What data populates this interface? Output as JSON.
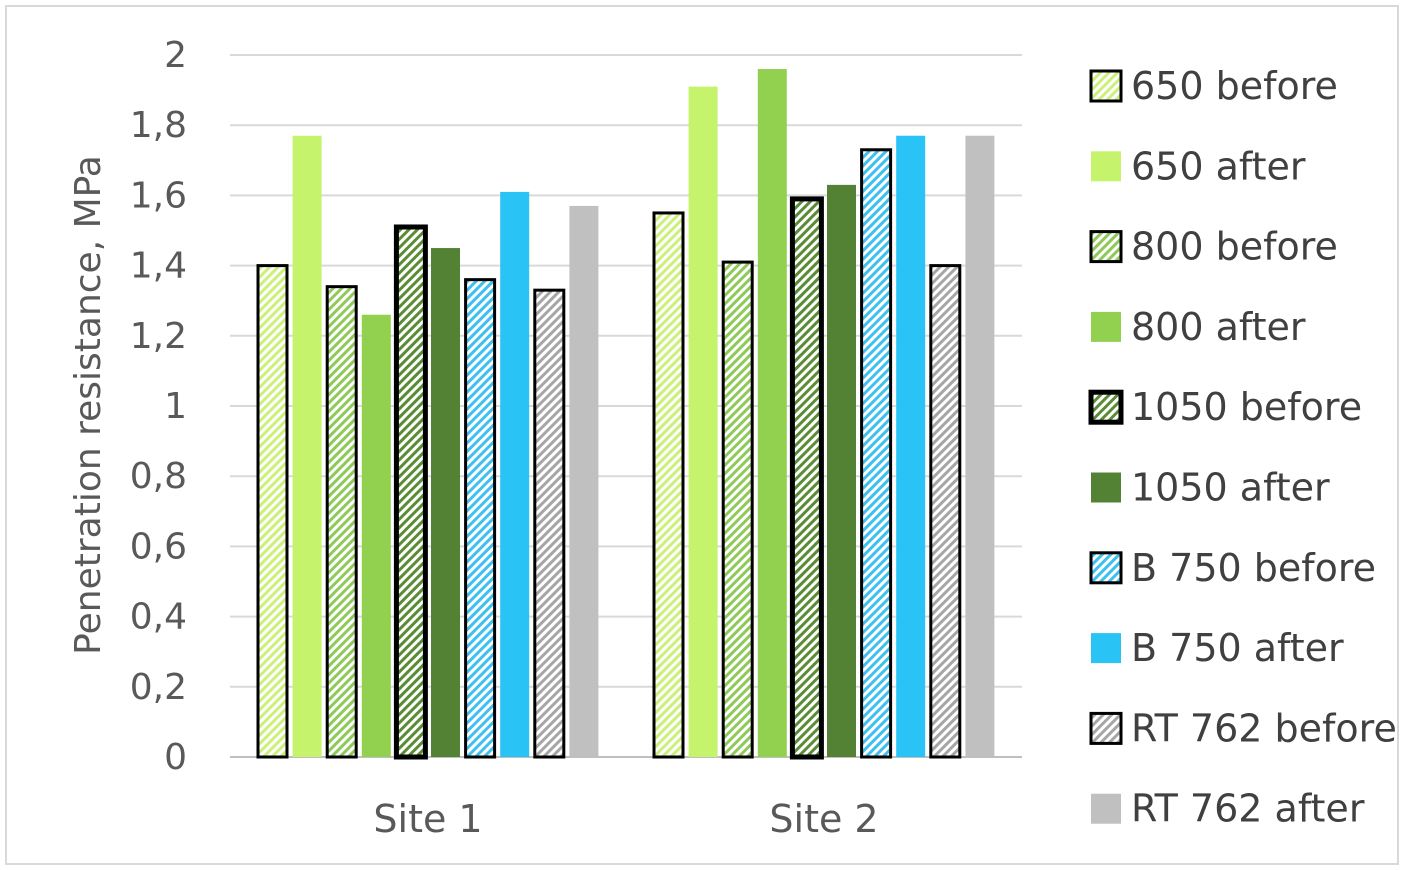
{
  "chart_data": {
    "type": "bar",
    "ylabel": "Penetration resistance, MPa",
    "categories": [
      "Site 1",
      "Site 2"
    ],
    "yticks": [
      "0",
      "0,2",
      "0,4",
      "0,6",
      "0,8",
      "1",
      "1,2",
      "1,4",
      "1,6",
      "1,8",
      "2"
    ],
    "ylim": [
      0,
      2
    ],
    "grid": true,
    "legend_position": "right",
    "series": [
      {
        "name": "650 before",
        "values": [
          1.4,
          1.55
        ],
        "color": "#ccf07a",
        "pattern": "hatch",
        "border": "#000000"
      },
      {
        "name": "650 after",
        "values": [
          1.77,
          1.91
        ],
        "color": "#c5f36b",
        "pattern": "solid"
      },
      {
        "name": "800 before",
        "values": [
          1.34,
          1.41
        ],
        "color": "#8fc95a",
        "pattern": "hatch",
        "border": "#000000"
      },
      {
        "name": "800 after",
        "values": [
          1.26,
          1.96
        ],
        "color": "#92d050",
        "pattern": "solid"
      },
      {
        "name": "1050 before",
        "values": [
          1.51,
          1.59
        ],
        "color": "#5a8c35",
        "pattern": "hatch",
        "border": "#000000",
        "thick_border": true
      },
      {
        "name": "1050 after",
        "values": [
          1.45,
          1.63
        ],
        "color": "#548235",
        "pattern": "solid"
      },
      {
        "name": "B 750 before",
        "values": [
          1.36,
          1.73
        ],
        "color": "#3fc0ee",
        "pattern": "hatch",
        "border": "#000000"
      },
      {
        "name": "B 750 after",
        "values": [
          1.61,
          1.77
        ],
        "color": "#29c3f5",
        "pattern": "solid"
      },
      {
        "name": "RT 762 before",
        "values": [
          1.33,
          1.4
        ],
        "color": "#a6a6a6",
        "pattern": "hatch",
        "border": "#000000"
      },
      {
        "name": "RT 762 after",
        "values": [
          1.57,
          1.77
        ],
        "color": "#c0c0c0",
        "pattern": "solid"
      }
    ]
  }
}
